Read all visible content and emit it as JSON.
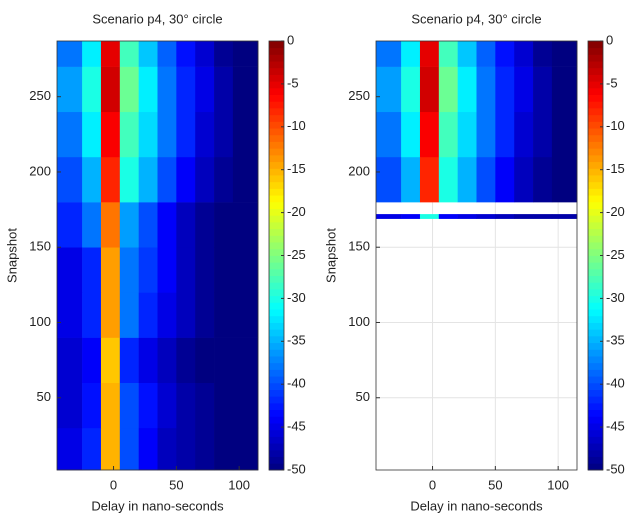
{
  "chart_data": [
    {
      "type": "heatmap",
      "title": "Scenario p4, 30° circle",
      "xlabel": "Delay in nano-seconds",
      "ylabel": "Snapshot",
      "colormap": "jet",
      "grid": true,
      "xlim": [
        -45,
        115
      ],
      "ylim": [
        2,
        287
      ],
      "xticks": [
        0,
        50,
        100
      ],
      "yticks": [
        50,
        100,
        150,
        200,
        250
      ],
      "clim": [
        -50,
        0
      ],
      "cticks": [
        0,
        -5,
        -10,
        -15,
        -20,
        -25,
        -30,
        -35,
        -40,
        -45,
        -50
      ],
      "xbins": [
        -45,
        -25,
        -10,
        5,
        20,
        35,
        50,
        65,
        80,
        95,
        115
      ],
      "ybins": [
        2,
        30,
        60,
        90,
        120,
        150,
        180,
        210,
        240,
        270,
        287
      ],
      "values": [
        [
          -45,
          -42,
          -15,
          -40,
          -44,
          -47,
          -48,
          -49,
          -50,
          -50
        ],
        [
          -46,
          -43,
          -15,
          -40,
          -43,
          -46,
          -48,
          -49,
          -50,
          -50
        ],
        [
          -46,
          -44,
          -16,
          -42,
          -45,
          -47,
          -49,
          -50,
          -50,
          -50
        ],
        [
          -45,
          -42,
          -14,
          -38,
          -42,
          -45,
          -47,
          -49,
          -50,
          -50
        ],
        [
          -45,
          -42,
          -14,
          -38,
          -41,
          -44,
          -47,
          -49,
          -50,
          -50
        ],
        [
          -42,
          -38,
          -12,
          -36,
          -40,
          -44,
          -47,
          -49,
          -50,
          -50
        ],
        [
          -40,
          -35,
          -8,
          -30,
          -35,
          -40,
          -44,
          -47,
          -49,
          -50
        ],
        [
          -38,
          -32,
          -6,
          -28,
          -33,
          -38,
          -42,
          -46,
          -48,
          -50
        ],
        [
          -36,
          -30,
          -4,
          -26,
          -32,
          -38,
          -42,
          -45,
          -48,
          -50
        ],
        [
          -38,
          -32,
          -5,
          -28,
          -34,
          -39,
          -43,
          -46,
          -49,
          -50
        ]
      ]
    },
    {
      "type": "heatmap",
      "title": "Scenario p4, 30° circle",
      "xlabel": "Delay in nano-seconds",
      "ylabel": "Snapshot",
      "colormap": "jet",
      "grid": true,
      "xlim": [
        -45,
        115
      ],
      "ylim": [
        2,
        287
      ],
      "xticks": [
        0,
        50,
        100
      ],
      "yticks": [
        50,
        100,
        150,
        200,
        250
      ],
      "clim": [
        -50,
        0
      ],
      "cticks": [
        0,
        -5,
        -10,
        -15,
        -20,
        -25,
        -30,
        -35,
        -40,
        -45,
        -50
      ],
      "xbins": [
        -45,
        -25,
        -10,
        5,
        20,
        35,
        50,
        65,
        80,
        95,
        115
      ],
      "ybins": [
        169,
        172,
        180,
        210,
        240,
        270,
        287
      ],
      "values": [
        [
          -45,
          -44,
          -30,
          -44,
          -45,
          -46,
          -47,
          -48,
          -48,
          -48
        ],
        [
          null,
          null,
          null,
          null,
          null,
          null,
          null,
          null,
          null,
          null
        ],
        [
          -40,
          -35,
          -8,
          -30,
          -35,
          -40,
          -44,
          -47,
          -49,
          -50
        ],
        [
          -38,
          -32,
          -6,
          -28,
          -33,
          -38,
          -42,
          -46,
          -48,
          -50
        ],
        [
          -36,
          -30,
          -4,
          -26,
          -32,
          -38,
          -42,
          -45,
          -48,
          -50
        ],
        [
          -38,
          -32,
          -5,
          -28,
          -34,
          -39,
          -43,
          -46,
          -49,
          -50
        ]
      ]
    }
  ]
}
